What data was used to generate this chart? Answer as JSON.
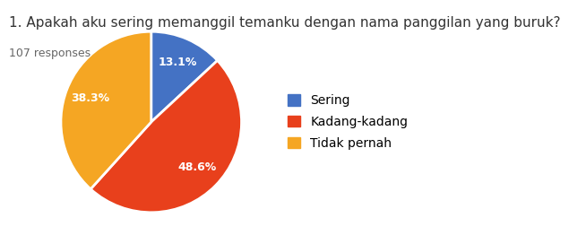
{
  "title": "1. Apakah aku sering memanggil temanku dengan nama panggilan yang buruk?",
  "subtitle": "107 responses",
  "labels": [
    "Sering",
    "Kadang-kadang",
    "Tidak pernah"
  ],
  "values": [
    13.1,
    48.6,
    38.3
  ],
  "colors": [
    "#4472c4",
    "#e8401c",
    "#f5a623"
  ],
  "background_color": "#ffffff",
  "title_fontsize": 11,
  "subtitle_fontsize": 9,
  "legend_fontsize": 10,
  "autopct_fontsize": 9,
  "startangle": 90
}
